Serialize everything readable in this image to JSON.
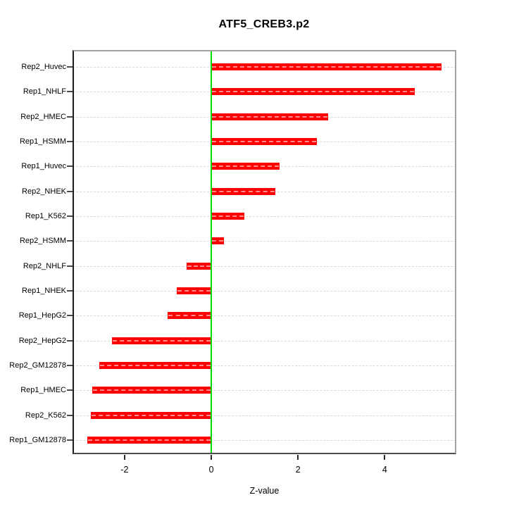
{
  "chart_data": {
    "type": "bar",
    "orientation": "horizontal",
    "title": "ATF5_CREB3.p2",
    "xlabel": "Z-value",
    "categories": [
      "Rep2_Huvec",
      "Rep1_NHLF",
      "Rep2_HMEC",
      "Rep1_HSMM",
      "Rep1_Huvec",
      "Rep2_NHEK",
      "Rep1_K562",
      "Rep2_HSMM",
      "Rep2_NHLF",
      "Rep1_NHEK",
      "Rep1_HepG2",
      "Rep2_HepG2",
      "Rep2_GM12878",
      "Rep1_HMEC",
      "Rep2_K562",
      "Rep1_GM12878"
    ],
    "values": [
      5.31,
      4.69,
      2.69,
      2.43,
      1.57,
      1.48,
      0.77,
      0.29,
      -0.57,
      -0.79,
      -1.01,
      -2.29,
      -2.59,
      -2.74,
      -2.77,
      -2.86
    ],
    "xticks": [
      -2,
      0,
      2,
      4
    ],
    "xlim": [
      -3.2,
      5.65
    ],
    "grid": "horizontal-dashed",
    "legend": "none",
    "colors": {
      "bar": "#ff0000",
      "zero_line": "#00dd00",
      "grid_line": "#d9d9d9",
      "frame": "#a2a2a2",
      "axis_text": "#000000"
    }
  }
}
